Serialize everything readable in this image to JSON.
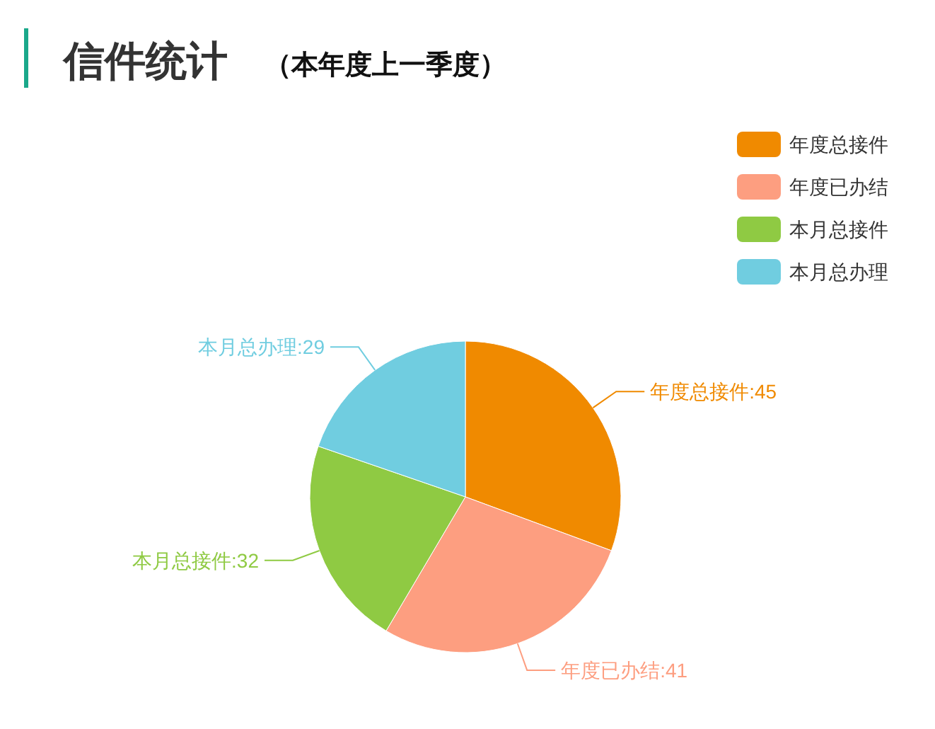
{
  "chart_data": {
    "type": "pie",
    "title": "信件统计",
    "subtitle": "（本年度上一季度）",
    "categories": [
      "年度总接件",
      "年度已办结",
      "本月总接件",
      "本月总办理"
    ],
    "values": [
      45,
      41,
      32,
      29
    ],
    "value_labels": [
      "年度总接件:45",
      "年度已办结:41",
      "本月总接件:32",
      "本月总办理:29"
    ],
    "colors": [
      "#f08a00",
      "#fd9e80",
      "#8fca43",
      "#70cde0"
    ],
    "legend": "top right"
  }
}
